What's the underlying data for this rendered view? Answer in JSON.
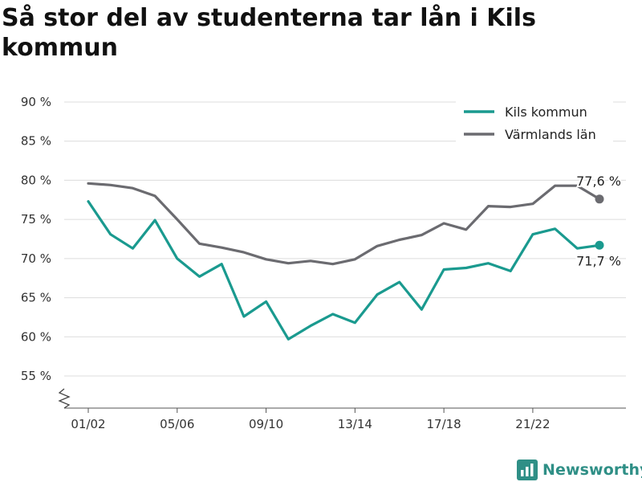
{
  "title": "Så stor del av studenterna tar lån i Kils kommun",
  "brand": {
    "name": "Newsworthy",
    "color": "#2f8f86"
  },
  "chart_data": {
    "type": "line",
    "title": "Så stor del av studenterna tar lån i Kils kommun",
    "x": [
      "01/02",
      "02/03",
      "03/04",
      "04/05",
      "05/06",
      "06/07",
      "07/08",
      "08/09",
      "09/10",
      "10/11",
      "11/12",
      "12/13",
      "13/14",
      "14/15",
      "15/16",
      "16/17",
      "17/18",
      "18/19",
      "19/20",
      "20/21",
      "21/22",
      "22/23",
      "23/24",
      "24/25"
    ],
    "x_tick_labels": [
      "01/02",
      "05/06",
      "09/10",
      "13/14",
      "17/18",
      "21/22"
    ],
    "y_ticks": [
      55,
      60,
      65,
      70,
      75,
      80,
      85,
      90
    ],
    "y_tick_labels": [
      "55 %",
      "60 %",
      "65 %",
      "70 %",
      "75 %",
      "80 %",
      "85 %",
      "90 %"
    ],
    "ylim": [
      55,
      90
    ],
    "y_axis_broken": true,
    "grid": true,
    "legend_position": "top-right",
    "series": [
      {
        "name": "Kils kommun",
        "color": "#1a9a8f",
        "values": [
          77.3,
          73.1,
          71.3,
          74.9,
          70.0,
          67.7,
          69.3,
          62.6,
          64.5,
          59.7,
          61.4,
          62.9,
          61.8,
          65.4,
          67.0,
          63.5,
          68.6,
          68.8,
          69.4,
          68.4,
          73.1,
          73.8,
          71.3,
          71.7
        ],
        "end_label": "71,7 %"
      },
      {
        "name": "Värmlands län",
        "color": "#6b6b70",
        "values": [
          79.6,
          79.4,
          79.0,
          78.0,
          75.0,
          71.9,
          71.4,
          70.8,
          69.9,
          69.4,
          69.7,
          69.3,
          69.9,
          71.6,
          72.4,
          73.0,
          74.5,
          73.7,
          76.7,
          76.6,
          77.0,
          79.3,
          79.3,
          77.6
        ],
        "end_label": "77,6 %"
      }
    ]
  }
}
